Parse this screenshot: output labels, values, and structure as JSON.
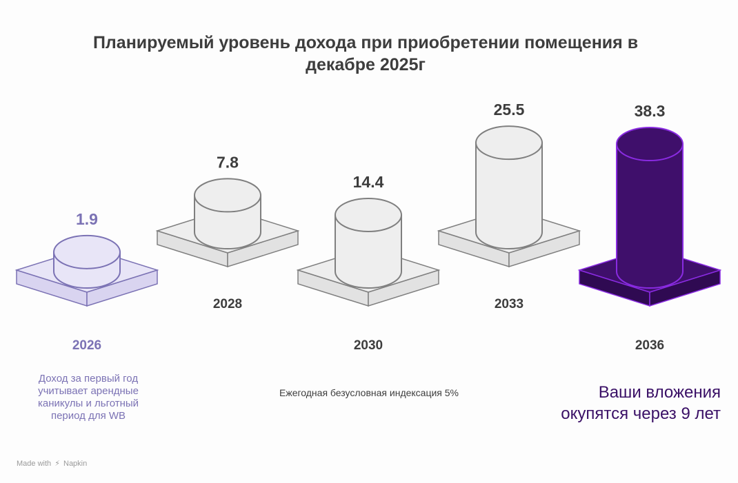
{
  "title": "Планируемый уровень дохода при приобретении помещения в декабре 2025г",
  "chart_data": {
    "type": "bar",
    "title": "Планируемый уровень дохода при приобретении помещения в декабре 2025г",
    "categories": [
      "2026",
      "2028",
      "2030",
      "2033",
      "2036"
    ],
    "values": [
      1.9,
      7.8,
      14.4,
      25.5,
      38.3
    ],
    "value_labels": [
      "1.9",
      "7.8",
      "14.4",
      "25.5",
      "38.3"
    ],
    "style": "3d-cylinders-on-plates",
    "colors": {
      "first": "#7b72b4",
      "first_fill": "#e8e5f7",
      "middle": "#3d3d3d",
      "middle_fill": "#eeeeee",
      "middle_stroke": "#7f7f7f",
      "last": "#3a0f66",
      "last_fill": "#3f0f6b",
      "last_stroke": "#8a2be2"
    }
  },
  "notes": {
    "left": "Доход за первый год учитывает арендные каникулы и льготный период для WB",
    "middle": "Ежегодная безусловная индексация 5%",
    "right": "Ваши вложения окупятся через 9 лет"
  },
  "watermark": {
    "prefix": "Made with",
    "brand": "Napkin",
    "icon": "napkin-logo-icon"
  }
}
